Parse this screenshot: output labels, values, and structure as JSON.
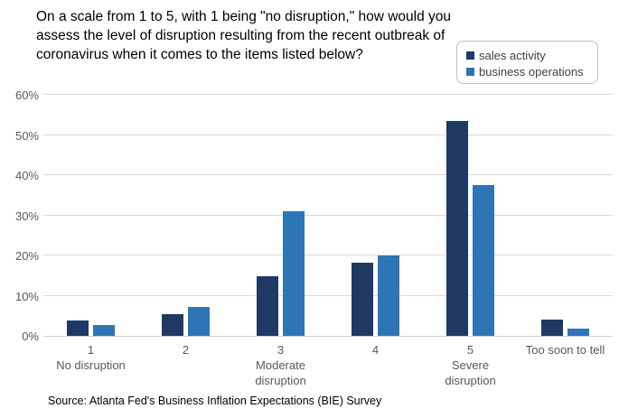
{
  "title": "On a scale from 1 to 5, with 1 being \"no disruption,\" how would you assess the level of disruption resulting from the recent outbreak of coronavirus when it comes to the items listed below?",
  "source": "Source: Atlanta Fed's Business Inflation Expectations (BIE) Survey",
  "colors": {
    "sales_activity": "#1f3864",
    "business_operations": "#2e75b6",
    "gridline": "#d9d9d9",
    "axis_text": "#595959",
    "legend_border": "#bfbfbf",
    "legend_text": "#404040",
    "title_text": "#000000"
  },
  "legend": {
    "position": "top-right",
    "items": [
      {
        "label": "sales activity",
        "color": "#1f3864"
      },
      {
        "label": "business operations",
        "color": "#2e75b6"
      }
    ]
  },
  "chart_data": {
    "type": "bar",
    "title": "On a scale from 1 to 5, with 1 being \"no disruption,\" how would you assess the level of disruption resulting from the recent outbreak of coronavirus when it comes to the items listed below?",
    "categories": [
      [
        "1",
        "No disruption"
      ],
      [
        "2"
      ],
      [
        "3",
        "Moderate",
        "disruption"
      ],
      [
        "4"
      ],
      [
        "5",
        "Severe",
        "disruption"
      ],
      [
        "Too soon to tell"
      ]
    ],
    "series": [
      {
        "name": "sales activity",
        "color": "#1f3864",
        "values": [
          3.9,
          5.5,
          14.9,
          18.2,
          53.5,
          4.1
        ]
      },
      {
        "name": "business operations",
        "color": "#2e75b6",
        "values": [
          2.8,
          7.2,
          30.9,
          20.0,
          37.6,
          1.8
        ]
      }
    ],
    "xlabel": "",
    "ylabel": "",
    "y_axis": {
      "min": 0,
      "max": 60,
      "step": 10,
      "tick_labels": [
        "0%",
        "10%",
        "20%",
        "30%",
        "40%",
        "50%",
        "60%"
      ]
    },
    "grid": "horizontal",
    "legend_position": "top-right"
  }
}
